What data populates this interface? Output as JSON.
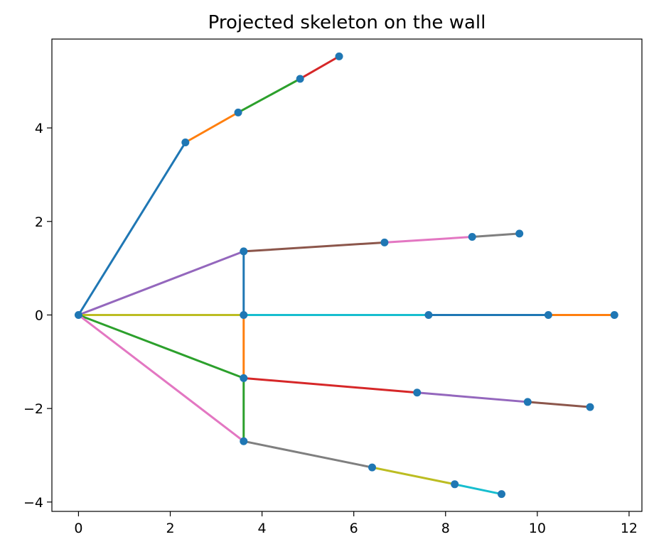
{
  "chart_data": {
    "type": "line",
    "title": "Projected skeleton on the wall",
    "xlabel": "",
    "ylabel": "",
    "xlim": [
      -0.58,
      12.28
    ],
    "ylim": [
      -4.2,
      5.9
    ],
    "xticks": [
      0,
      2,
      4,
      6,
      8,
      10,
      12
    ],
    "yticks": [
      -4,
      -2,
      0,
      2,
      4
    ],
    "xtick_labels": [
      "0",
      "2",
      "4",
      "6",
      "8",
      "10",
      "12"
    ],
    "ytick_labels": [
      "−4",
      "−2",
      "0",
      "2",
      "4"
    ],
    "grid": false,
    "point_color": "#1f77b4",
    "points": [
      [
        0,
        0
      ],
      [
        2.33,
        3.69
      ],
      [
        3.48,
        4.33
      ],
      [
        4.83,
        5.05
      ],
      [
        5.68,
        5.53
      ],
      [
        3.6,
        1.36
      ],
      [
        6.67,
        1.55
      ],
      [
        8.58,
        1.67
      ],
      [
        9.61,
        1.74
      ],
      [
        3.6,
        0
      ],
      [
        7.63,
        0
      ],
      [
        10.24,
        0
      ],
      [
        11.68,
        0
      ],
      [
        3.6,
        -1.35
      ],
      [
        7.38,
        -1.66
      ],
      [
        9.79,
        -1.86
      ],
      [
        11.15,
        -1.97
      ],
      [
        3.6,
        -2.7
      ],
      [
        6.4,
        -3.26
      ],
      [
        8.2,
        -3.62
      ],
      [
        9.22,
        -3.83
      ]
    ],
    "segments": [
      {
        "from": [
          0,
          0
        ],
        "to": [
          2.33,
          3.69
        ],
        "color": "#1f77b4"
      },
      {
        "from": [
          2.33,
          3.69
        ],
        "to": [
          3.48,
          4.33
        ],
        "color": "#ff7f0e"
      },
      {
        "from": [
          3.48,
          4.33
        ],
        "to": [
          4.83,
          5.05
        ],
        "color": "#2ca02c"
      },
      {
        "from": [
          4.83,
          5.05
        ],
        "to": [
          5.68,
          5.53
        ],
        "color": "#d62728"
      },
      {
        "from": [
          0,
          0
        ],
        "to": [
          3.6,
          1.36
        ],
        "color": "#9467bd"
      },
      {
        "from": [
          3.6,
          1.36
        ],
        "to": [
          6.67,
          1.55
        ],
        "color": "#8c564b"
      },
      {
        "from": [
          6.67,
          1.55
        ],
        "to": [
          8.58,
          1.67
        ],
        "color": "#e377c2"
      },
      {
        "from": [
          8.58,
          1.67
        ],
        "to": [
          9.61,
          1.74
        ],
        "color": "#7f7f7f"
      },
      {
        "from": [
          0,
          0
        ],
        "to": [
          3.6,
          0
        ],
        "color": "#bcbd22"
      },
      {
        "from": [
          3.6,
          0
        ],
        "to": [
          7.63,
          0
        ],
        "color": "#17becf"
      },
      {
        "from": [
          7.63,
          0
        ],
        "to": [
          10.24,
          0
        ],
        "color": "#1f77b4"
      },
      {
        "from": [
          10.24,
          0
        ],
        "to": [
          11.68,
          0
        ],
        "color": "#ff7f0e"
      },
      {
        "from": [
          0,
          0
        ],
        "to": [
          3.6,
          -1.35
        ],
        "color": "#2ca02c"
      },
      {
        "from": [
          3.6,
          -1.35
        ],
        "to": [
          7.38,
          -1.66
        ],
        "color": "#d62728"
      },
      {
        "from": [
          7.38,
          -1.66
        ],
        "to": [
          9.79,
          -1.86
        ],
        "color": "#9467bd"
      },
      {
        "from": [
          9.79,
          -1.86
        ],
        "to": [
          11.15,
          -1.97
        ],
        "color": "#8c564b"
      },
      {
        "from": [
          0,
          0
        ],
        "to": [
          3.6,
          -2.7
        ],
        "color": "#e377c2"
      },
      {
        "from": [
          3.6,
          -2.7
        ],
        "to": [
          6.4,
          -3.26
        ],
        "color": "#7f7f7f"
      },
      {
        "from": [
          6.4,
          -3.26
        ],
        "to": [
          8.2,
          -3.62
        ],
        "color": "#bcbd22"
      },
      {
        "from": [
          8.2,
          -3.62
        ],
        "to": [
          9.22,
          -3.83
        ],
        "color": "#17becf"
      },
      {
        "from": [
          3.6,
          1.36
        ],
        "to": [
          3.6,
          0
        ],
        "color": "#1f77b4"
      },
      {
        "from": [
          3.6,
          0
        ],
        "to": [
          3.6,
          -1.35
        ],
        "color": "#ff7f0e"
      },
      {
        "from": [
          3.6,
          -1.35
        ],
        "to": [
          3.6,
          -2.7
        ],
        "color": "#2ca02c"
      }
    ]
  }
}
